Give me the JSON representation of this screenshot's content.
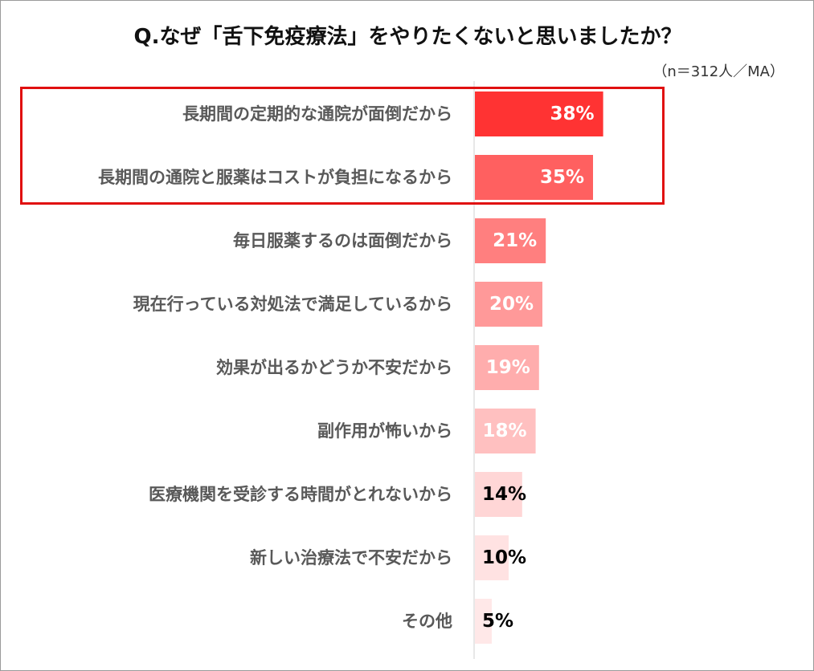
{
  "chart_data": {
    "type": "bar",
    "orientation": "horizontal",
    "title": "Q.なぜ「舌下免疫療法」をやりたくないと思いましたか？",
    "note": "（n＝312人／MA）",
    "categories": [
      "長期間の定期的な通院が面倒だから",
      "長期間の通院と服薬はコストが負担になるから",
      "毎日服薬するのは面倒だから",
      "現在行っている対処法で満足しているから",
      "効果が出るかどうか不安だから",
      "副作用が怖いから",
      "医療機関を受診する時間がとれないから",
      "新しい治療法で不安だから",
      "その他"
    ],
    "values": [
      38,
      35,
      21,
      20,
      19,
      18,
      14,
      10,
      5
    ],
    "value_labels": [
      "38%",
      "35%",
      "21%",
      "20%",
      "19%",
      "18%",
      "14%",
      "10%",
      "5%"
    ],
    "colors": [
      "#ff3333",
      "#ff6060",
      "#ff7f7f",
      "#ff9999",
      "#ffadad",
      "#ffc0c0",
      "#ffd6d6",
      "#ffe2e2",
      "#ffe8e8"
    ],
    "label_colors": [
      "#ffffff",
      "#ffffff",
      "#ffffff",
      "#ffffff",
      "#ffffff",
      "#ffffff",
      "#000000",
      "#000000",
      "#000000"
    ],
    "highlighted": [
      0,
      1
    ],
    "highlight_color": "#e01010",
    "xlim": [
      0,
      60
    ],
    "grid": false,
    "legend": "none"
  }
}
